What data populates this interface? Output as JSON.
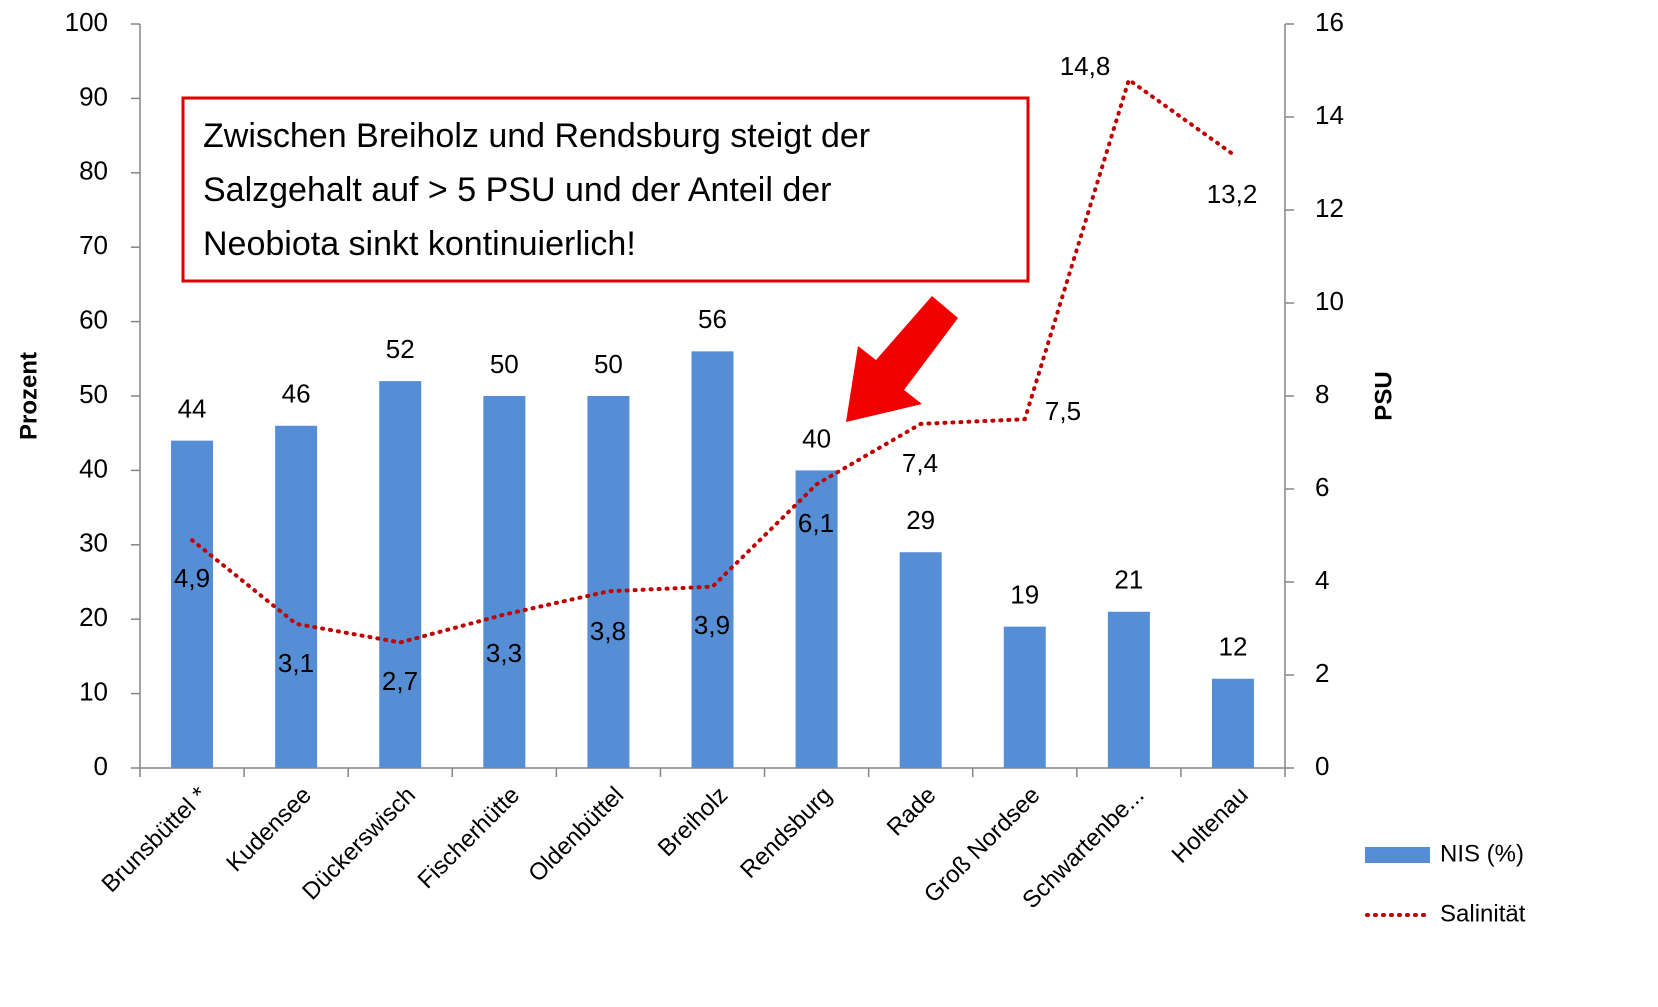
{
  "chart_data": {
    "type": "bar_line",
    "annotation": [
      "Zwischen Breiholz und Rendsburg steigt der",
      "Salzgehalt auf  > 5 PSU und der Anteil der",
      "Neobiota  sinkt kontinuierlich!"
    ],
    "ylabel": "Prozent",
    "y2label": "PSU",
    "categories": [
      "Brunsbüttel *",
      "Kudensee",
      "Dückerswisch",
      "Fischerhütte",
      "Oldenbüttel",
      "Breiholz",
      "Rendsburg",
      "Rade",
      "Groß Nordsee",
      "Schwartenbe...",
      "Holtenau"
    ],
    "series": [
      {
        "name": "NIS (%)",
        "type": "bar",
        "color": "#558ed5",
        "values": [
          44,
          46,
          52,
          50,
          50,
          56,
          40,
          29,
          19,
          21,
          12
        ]
      },
      {
        "name": "Salinität",
        "type": "line",
        "axis": "y2",
        "color": "#c00000",
        "values": [
          4.9,
          3.1,
          2.7,
          3.3,
          3.8,
          3.9,
          6.1,
          7.4,
          7.5,
          14.8,
          13.2
        ],
        "value_labels": [
          "4,9",
          "3,1",
          "2,7",
          "3,3",
          "3,8",
          "3,9",
          "6,1",
          "7,4",
          "7,5",
          "14,8",
          "13,2"
        ]
      }
    ],
    "ylim": [
      0,
      100
    ],
    "yticks": [
      0,
      10,
      20,
      30,
      40,
      50,
      60,
      70,
      80,
      90,
      100
    ],
    "y2lim": [
      0,
      16
    ],
    "y2ticks": [
      0,
      2,
      4,
      6,
      8,
      10,
      12,
      14,
      16
    ],
    "legend": "bottom-right"
  }
}
